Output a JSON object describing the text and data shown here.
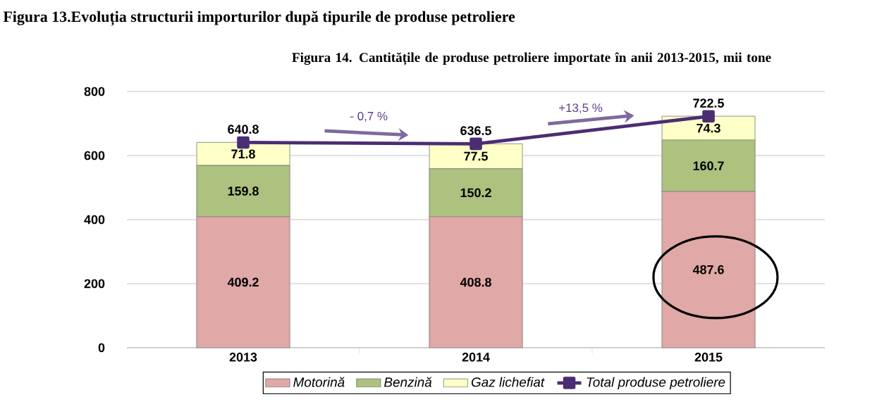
{
  "chart_data": {
    "type": "bar",
    "title": "Figura 14. Cantitățile de produse petroliere importate în anii 2013-2015, mii tone",
    "categories": [
      "2013",
      "2014",
      "2015"
    ],
    "stacked": true,
    "series": [
      {
        "name": "Motorină",
        "color": "#e0a8a6",
        "values": [
          409.2,
          408.8,
          487.6
        ]
      },
      {
        "name": "Benzină",
        "color": "#adc27f",
        "values": [
          159.8,
          150.2,
          160.7
        ]
      },
      {
        "name": "Gaz lichefiat",
        "color": "#ffffc8",
        "values": [
          71.8,
          77.5,
          74.3
        ]
      },
      {
        "name": "Total produse petroliere",
        "type": "line",
        "color": "#4b2d73",
        "marker": "square",
        "values": [
          640.8,
          636.5,
          722.5
        ]
      }
    ],
    "ylim": [
      0,
      800
    ],
    "yticks": [
      0,
      200,
      400,
      600,
      800
    ],
    "grid": "y",
    "legend": "bottom",
    "data_labels": true,
    "annotations": [
      "Figura 13.Evoluția structurii importurilor după tipurile de produse petroliere",
      "- 0,7 %",
      "+13,5 %"
    ]
  }
}
